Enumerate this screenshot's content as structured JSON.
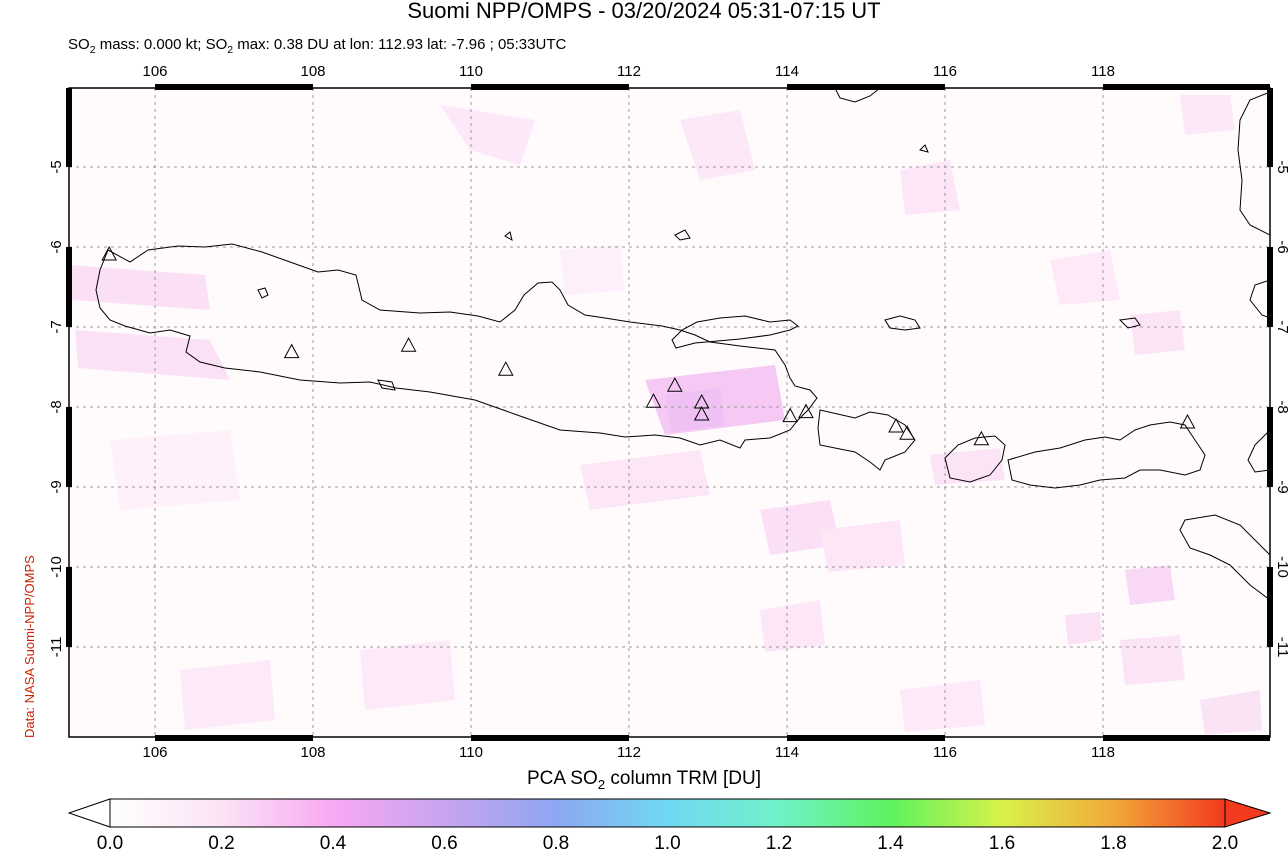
{
  "header": {
    "title": "Suomi NPP/OMPS - 03/20/2024 05:31-07:15 UT",
    "subtitle_parts": [
      "SO",
      "2",
      " mass: 0.000 kt; SO",
      "2",
      " max: 0.38 DU at lon: 112.93 lat: -7.96 ; 05:33UTC"
    ]
  },
  "credit": "Data: NASA Suomi-NPP/OMPS",
  "map": {
    "lon_range": [
      105,
      120
    ],
    "lat_range": [
      -12,
      -4
    ],
    "lon_ticks": [
      "106",
      "108",
      "110",
      "112",
      "114",
      "116",
      "118"
    ],
    "lat_ticks": [
      "-5",
      "-6",
      "-7",
      "-8",
      "-9",
      "-10",
      "-11"
    ],
    "grid": "dashed",
    "volcanoes": [
      {
        "lon": 105.42,
        "lat": -6.1
      },
      {
        "lon": 107.73,
        "lat": -7.32
      },
      {
        "lon": 109.21,
        "lat": -7.24
      },
      {
        "lon": 110.44,
        "lat": -7.54
      },
      {
        "lon": 112.31,
        "lat": -7.94
      },
      {
        "lon": 112.58,
        "lat": -7.74
      },
      {
        "lon": 112.92,
        "lat": -7.95
      },
      {
        "lon": 112.92,
        "lat": -8.1
      },
      {
        "lon": 114.04,
        "lat": -8.12
      },
      {
        "lon": 114.24,
        "lat": -8.07
      },
      {
        "lon": 115.38,
        "lat": -8.25
      },
      {
        "lon": 115.52,
        "lat": -8.34
      },
      {
        "lon": 116.46,
        "lat": -8.41
      },
      {
        "lon": 119.07,
        "lat": -8.2
      }
    ]
  },
  "colorbar": {
    "label_parts": [
      "PCA SO",
      "2",
      " column TRM [DU]"
    ],
    "ticks": [
      "0.0",
      "0.2",
      "0.4",
      "0.6",
      "0.8",
      "1.0",
      "1.2",
      "1.4",
      "1.6",
      "1.8",
      "2.0"
    ],
    "colors": [
      "#ffffff",
      "#fbe3f6",
      "#f7a9f2",
      "#c8a4f0",
      "#8da7f2",
      "#70d8f2",
      "#70f2c8",
      "#5ef25e",
      "#d8f24a",
      "#f2a93a",
      "#f23a1e"
    ]
  }
}
